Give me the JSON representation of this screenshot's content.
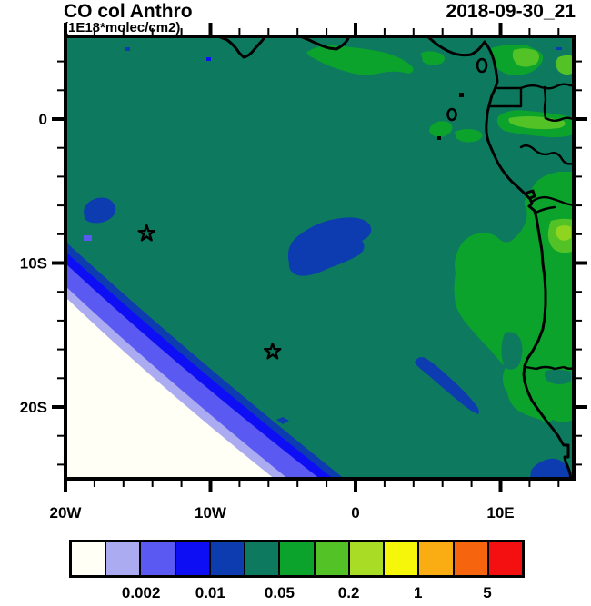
{
  "header": {
    "title": "CO col Anthro",
    "subtitle": "(1E18*molec/cm2)",
    "datetime": "2018-09-30_21"
  },
  "chart_data": {
    "type": "heatmap",
    "subtype": "filled-contour-geomap",
    "title": "CO col Anthro",
    "units_label": "(1E18*molec/cm2)",
    "timestamp": "2018-09-30_21",
    "map_extent": {
      "lon_min": -20,
      "lon_max": 15.05,
      "lat_min": -25,
      "lat_max": 5.74
    },
    "x_axis": {
      "major_ticks": [
        {
          "lon": -20,
          "label": "20W"
        },
        {
          "lon": -10,
          "label": "10W"
        },
        {
          "lon": 0,
          "label": "0"
        },
        {
          "lon": 10,
          "label": "10E"
        }
      ],
      "minor_ticks_lon": [
        -18,
        -16,
        -14,
        -12,
        -8,
        -6,
        -4,
        -2,
        2,
        4,
        6,
        8,
        12,
        14
      ],
      "minor_tick_step_deg": 2
    },
    "y_axis": {
      "major_ticks": [
        {
          "lat": 0,
          "label": "0"
        },
        {
          "lat": -10,
          "label": "10S"
        },
        {
          "lat": -20,
          "label": "20S"
        }
      ],
      "minor_ticks_lat": [
        4,
        2,
        -2,
        -4,
        -6,
        -8,
        -12,
        -14,
        -16,
        -18,
        -22,
        -24
      ],
      "minor_tick_step_deg": 2
    },
    "colorbar": {
      "colors": [
        "#FFFFF6",
        "#ABABF2",
        "#5A5AF2",
        "#0E0EF5",
        "#0C3CB0",
        "#0D7A5F",
        "#0BA32B",
        "#53C226",
        "#A8DC25",
        "#F6F60B",
        "#FAAD12",
        "#F6640E",
        "#F41010"
      ],
      "labeled_boundaries": [
        {
          "boundary_after_cell": 2,
          "label": "0.002"
        },
        {
          "boundary_after_cell": 4,
          "label": "0.01"
        },
        {
          "boundary_after_cell": 6,
          "label": "0.05"
        },
        {
          "boundary_after_cell": 8,
          "label": "0.2"
        },
        {
          "boundary_after_cell": 10,
          "label": "1"
        },
        {
          "boundary_after_cell": 12,
          "label": "5"
        }
      ]
    },
    "markers": [
      {
        "shape": "open-star",
        "lon": -14.4,
        "lat": -7.95
      },
      {
        "shape": "open-star",
        "lon": -5.72,
        "lat": -16.15
      }
    ],
    "field_summary": [
      {
        "region": "South Atlantic ocean background",
        "color": "#0D7A5F",
        "value_band": "0.02-0.05"
      },
      {
        "region": "southwest corner of domain",
        "color": "#FFFFF6",
        "value_band": "<0.001"
      },
      {
        "region": "NW-SE diagonal gradient bands offshore toward SW corner",
        "colors": [
          "#ABABF2",
          "#5A5AF2",
          "#0E0EF5",
          "#0C3CB0"
        ],
        "value_band": "0.001-0.02"
      },
      {
        "region": "low blob near 6W-2W, 7S-11S",
        "color": "#0C3CB0",
        "value_band": "0.01-0.02"
      },
      {
        "region": "low blob near 18.5W-17W, 5.5S-7.5S",
        "color": "#0C3CB0",
        "value_band": "0.01-0.02"
      },
      {
        "region": "low sliver near 4W-1.5W, 16S-20S",
        "color": "#0C3CB0",
        "value_band": "0.01-0.02"
      },
      {
        "region": "coastal low patch near 12E-15E, 22.5S-25S",
        "color": "#0C3CB0",
        "value_band": "0.01-0.02"
      },
      {
        "region": "Gulf of Guinea coastal plume",
        "color": "#0BA32B",
        "value_band": "0.05-0.1"
      },
      {
        "region": "Cameroon/Gabon/Congo interior",
        "color": "#0BA32B",
        "value_band": "0.05-0.1"
      },
      {
        "region": "Congo/Angola coast and interior",
        "colors": [
          "#0BA32B",
          "#53C226",
          "#A8DC25"
        ],
        "value_band": "0.05-0.5"
      }
    ]
  }
}
